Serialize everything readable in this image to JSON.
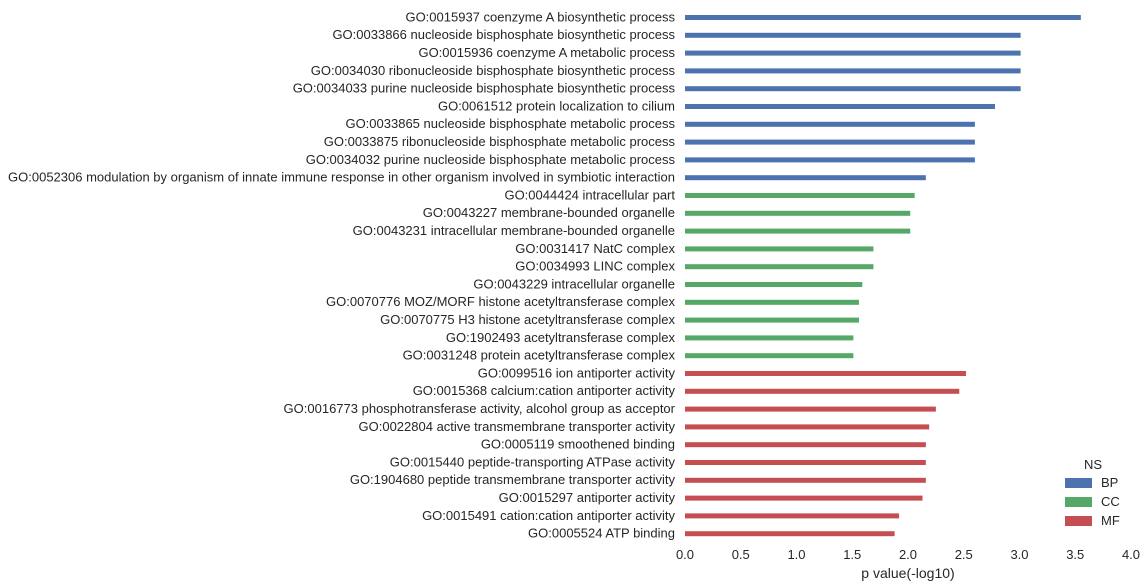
{
  "chart_data": {
    "type": "bar",
    "orientation": "horizontal",
    "xlabel": "p value(-log10)",
    "xlim": [
      0,
      4.0
    ],
    "x_ticks": [
      "0.0",
      "0.5",
      "1.0",
      "1.5",
      "2.0",
      "2.5",
      "3.0",
      "3.5",
      "4.0"
    ],
    "grid": false,
    "legend": {
      "title": "NS",
      "position": "bottom-right",
      "entries": [
        {
          "name": "BP",
          "color": "#4c72b0"
        },
        {
          "name": "CC",
          "color": "#55a868"
        },
        {
          "name": "MF",
          "color": "#c44e52"
        }
      ]
    },
    "categories": [
      {
        "label": "GO:0015937 coenzyme A biosynthetic process",
        "value": 3.55,
        "ns": "BP"
      },
      {
        "label": "GO:0033866 nucleoside bisphosphate biosynthetic process",
        "value": 3.01,
        "ns": "BP"
      },
      {
        "label": "GO:0015936 coenzyme A metabolic process",
        "value": 3.01,
        "ns": "BP"
      },
      {
        "label": "GO:0034030 ribonucleoside bisphosphate biosynthetic process",
        "value": 3.01,
        "ns": "BP"
      },
      {
        "label": "GO:0034033 purine nucleoside bisphosphate biosynthetic process",
        "value": 3.01,
        "ns": "BP"
      },
      {
        "label": "GO:0061512 protein localization to cilium",
        "value": 2.78,
        "ns": "BP"
      },
      {
        "label": "GO:0033865 nucleoside bisphosphate metabolic process",
        "value": 2.6,
        "ns": "BP"
      },
      {
        "label": "GO:0033875 ribonucleoside bisphosphate metabolic process",
        "value": 2.6,
        "ns": "BP"
      },
      {
        "label": "GO:0034032 purine nucleoside bisphosphate metabolic process",
        "value": 2.6,
        "ns": "BP"
      },
      {
        "label": "GO:0052306 modulation by organism of innate immune response in other organism involved in symbiotic interaction",
        "value": 2.16,
        "ns": "BP"
      },
      {
        "label": "GO:0044424 intracellular part",
        "value": 2.06,
        "ns": "CC"
      },
      {
        "label": "GO:0043227 membrane-bounded organelle",
        "value": 2.02,
        "ns": "CC"
      },
      {
        "label": "GO:0043231 intracellular membrane-bounded organelle",
        "value": 2.02,
        "ns": "CC"
      },
      {
        "label": "GO:0031417 NatC complex",
        "value": 1.69,
        "ns": "CC"
      },
      {
        "label": "GO:0034993 LINC complex",
        "value": 1.69,
        "ns": "CC"
      },
      {
        "label": "GO:0043229 intracellular organelle",
        "value": 1.59,
        "ns": "CC"
      },
      {
        "label": "GO:0070776 MOZ/MORF histone acetyltransferase complex",
        "value": 1.56,
        "ns": "CC"
      },
      {
        "label": "GO:0070775 H3 histone acetyltransferase complex",
        "value": 1.56,
        "ns": "CC"
      },
      {
        "label": "GO:1902493 acetyltransferase complex",
        "value": 1.51,
        "ns": "CC"
      },
      {
        "label": "GO:0031248 protein acetyltransferase complex",
        "value": 1.51,
        "ns": "CC"
      },
      {
        "label": "GO:0099516 ion antiporter activity",
        "value": 2.52,
        "ns": "MF"
      },
      {
        "label": "GO:0015368 calcium:cation antiporter activity",
        "value": 2.46,
        "ns": "MF"
      },
      {
        "label": "GO:0016773 phosphotransferase activity, alcohol group as acceptor",
        "value": 2.25,
        "ns": "MF"
      },
      {
        "label": "GO:0022804 active transmembrane transporter activity",
        "value": 2.19,
        "ns": "MF"
      },
      {
        "label": "GO:0005119 smoothened binding",
        "value": 2.16,
        "ns": "MF"
      },
      {
        "label": "GO:0015440 peptide-transporting ATPase activity",
        "value": 2.16,
        "ns": "MF"
      },
      {
        "label": "GO:1904680 peptide transmembrane transporter activity",
        "value": 2.16,
        "ns": "MF"
      },
      {
        "label": "GO:0015297 antiporter activity",
        "value": 2.13,
        "ns": "MF"
      },
      {
        "label": "GO:0015491 cation:cation antiporter activity",
        "value": 1.92,
        "ns": "MF"
      },
      {
        "label": "GO:0005524 ATP binding",
        "value": 1.88,
        "ns": "MF"
      }
    ]
  }
}
